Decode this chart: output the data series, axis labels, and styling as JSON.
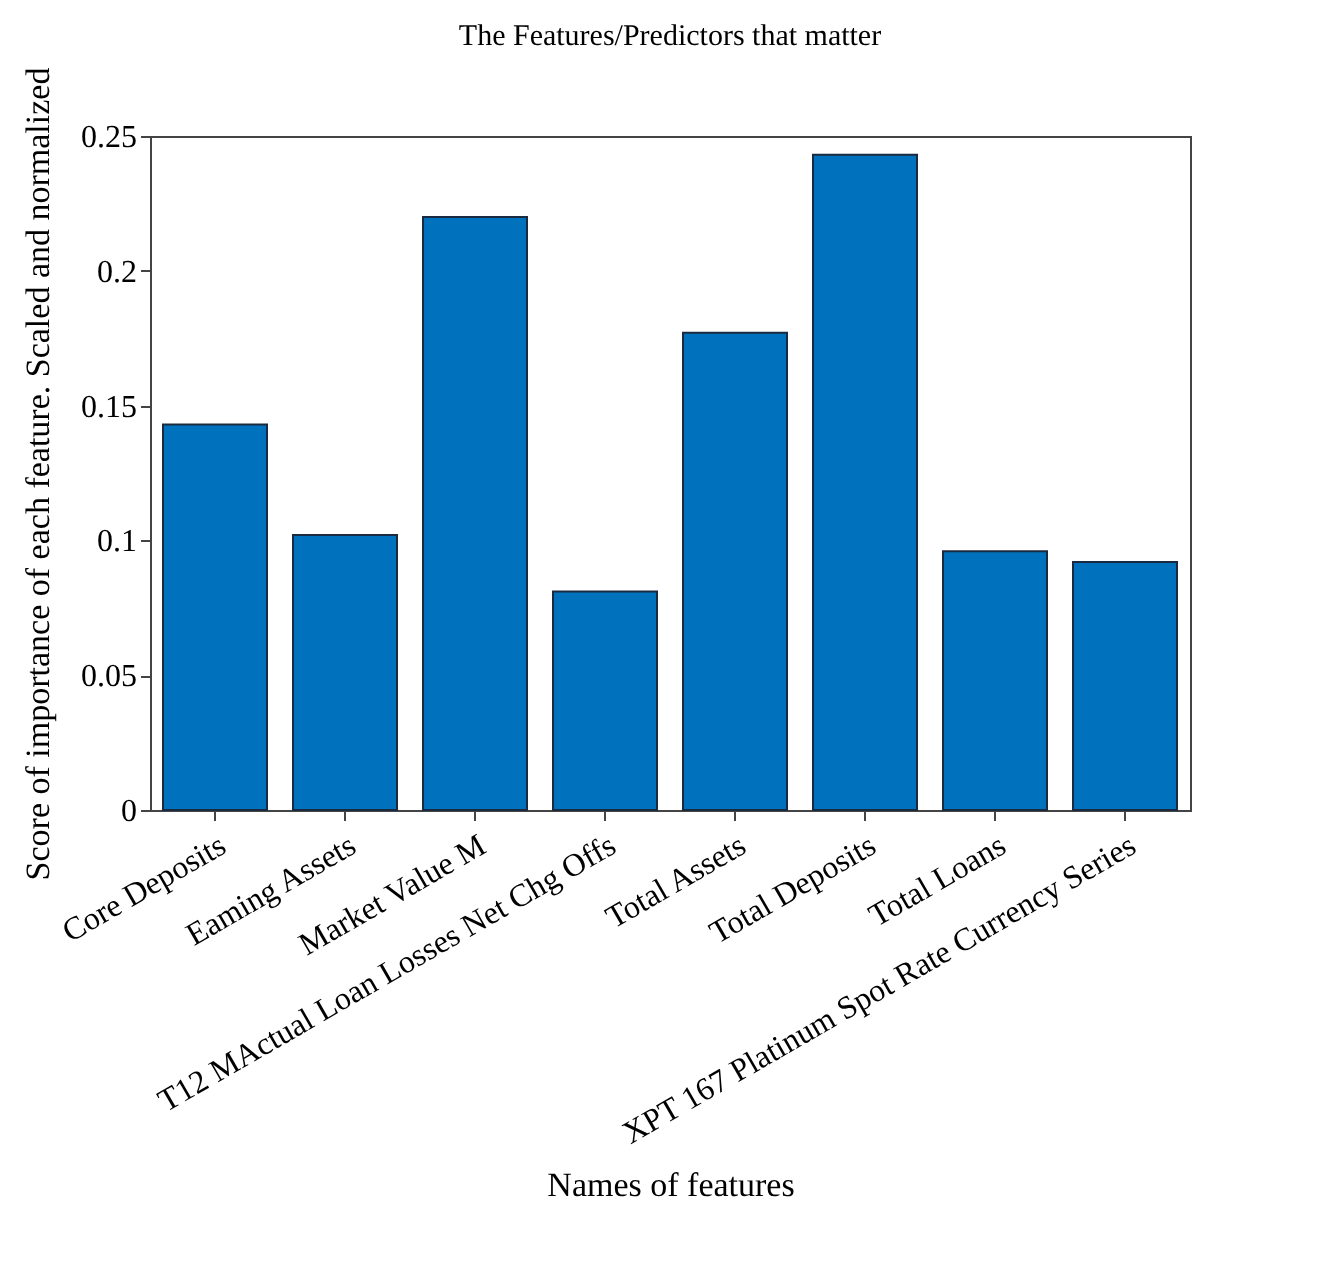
{
  "chart_data": {
    "type": "bar",
    "title": "The Features/Predictors that matter",
    "xlabel": "Names of features",
    "ylabel": "Score of importance of each feature. Scaled and normalized",
    "categories": [
      "Core Deposits",
      "Eaming Assets",
      "Market Value M",
      "T12 MActual Loan Losses Net Chg Offs",
      "Total Assets",
      "Total Deposits",
      "Total Loans",
      "XPT 167 Platinum Spot Rate Currency Series"
    ],
    "values": [
      0.143,
      0.102,
      0.22,
      0.081,
      0.177,
      0.243,
      0.096,
      0.092
    ],
    "color": "#0072bd",
    "ylim": [
      0,
      0.25
    ],
    "yticks": [
      0,
      0.05,
      0.1,
      0.15,
      0.2,
      0.25
    ],
    "grid": false
  }
}
